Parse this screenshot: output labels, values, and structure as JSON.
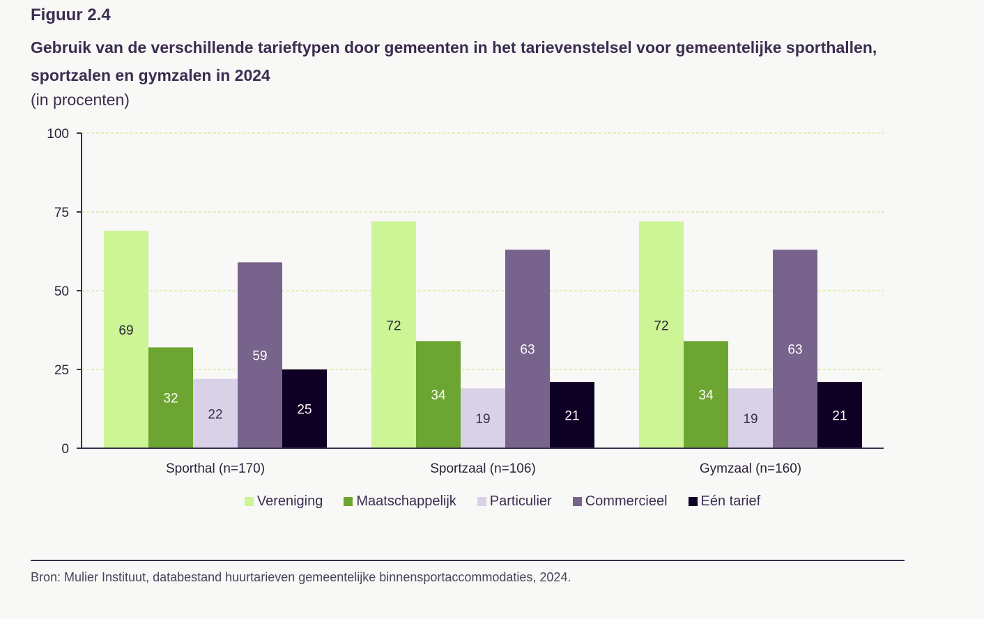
{
  "figure_label": "Figuur 2.4",
  "title": "Gebruik van de verschillende tarieftypen door gemeenten in het tarievenstelsel voor gemeentelijke sporthallen, sportzalen en gymzalen in 2024",
  "subtitle": "(in procenten)",
  "source": "Bron: Mulier Instituut, databestand huurtarieven gemeentelijke binnensportaccommodaties, 2024.",
  "chart_data": {
    "type": "bar",
    "title": "Gebruik van de verschillende tarieftypen door gemeenten in het tarievenstelsel voor gemeentelijke sporthallen, sportzalen en gymzalen in 2024",
    "subtitle": "(in procenten)",
    "xlabel": "",
    "ylabel": "",
    "ylim": [
      0,
      100
    ],
    "yticks": [
      0,
      25,
      50,
      75,
      100
    ],
    "grid": true,
    "legend_position": "bottom",
    "categories": [
      "Sporthal (n=170)",
      "Sportzaal (n=106)",
      "Gymzaal (n=160)"
    ],
    "series": [
      {
        "name": "Vereniging",
        "color": "#cdf495",
        "label_color": "#2b2338",
        "values": [
          69,
          72,
          72
        ]
      },
      {
        "name": "Maatschappelijk",
        "color": "#6da532",
        "label_color": "#ffffff",
        "values": [
          32,
          34,
          34
        ]
      },
      {
        "name": "Particulier",
        "color": "#d9d1e8",
        "label_color": "#3b2d4f",
        "values": [
          22,
          19,
          19
        ]
      },
      {
        "name": "Commercieel",
        "color": "#78638c",
        "label_color": "#ffffff",
        "values": [
          59,
          63,
          63
        ]
      },
      {
        "name": "Eén tarief",
        "color": "#0e0024",
        "label_color": "#ffffff",
        "values": [
          25,
          21,
          21
        ]
      }
    ]
  }
}
